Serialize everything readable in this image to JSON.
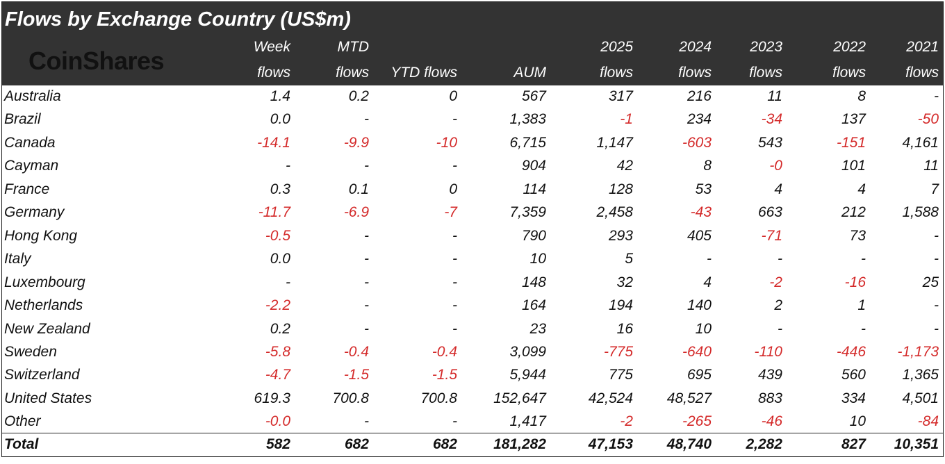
{
  "header": {
    "title": "Flows by Exchange Country (US$m)",
    "logo": "CoinShares",
    "columns": [
      [
        "Week",
        "flows"
      ],
      [
        "MTD",
        "flows"
      ],
      [
        "YTD flows"
      ],
      [
        "AUM"
      ],
      [
        "2025",
        "flows"
      ],
      [
        "2024",
        "flows"
      ],
      [
        "2023",
        "flows"
      ],
      [
        "2022",
        "flows"
      ],
      [
        "2021",
        "flows"
      ]
    ]
  },
  "table": {
    "rows": [
      [
        "Australia",
        "1.4",
        "0.2",
        "0",
        "567",
        "317",
        "216",
        "11",
        "8",
        "-"
      ],
      [
        "Brazil",
        "0.0",
        "-",
        "-",
        "1,383",
        "-1",
        "234",
        "-34",
        "137",
        "-50"
      ],
      [
        "Canada",
        "-14.1",
        "-9.9",
        "-10",
        "6,715",
        "1,147",
        "-603",
        "543",
        "-151",
        "4,161"
      ],
      [
        "Cayman",
        "-",
        "-",
        "-",
        "904",
        "42",
        "8",
        "-0",
        "101",
        "11"
      ],
      [
        "France",
        "0.3",
        "0.1",
        "0",
        "114",
        "128",
        "53",
        "4",
        "4",
        "7"
      ],
      [
        "Germany",
        "-11.7",
        "-6.9",
        "-7",
        "7,359",
        "2,458",
        "-43",
        "663",
        "212",
        "1,588"
      ],
      [
        "Hong Kong",
        "-0.5",
        "-",
        "-",
        "790",
        "293",
        "405",
        "-71",
        "73",
        "-"
      ],
      [
        "Italy",
        "0.0",
        "-",
        "-",
        "10",
        "5",
        "-",
        "-",
        "-",
        "-"
      ],
      [
        "Luxembourg",
        "-",
        "-",
        "-",
        "148",
        "32",
        "4",
        "-2",
        "-16",
        "25"
      ],
      [
        "Netherlands",
        "-2.2",
        "-",
        "-",
        "164",
        "194",
        "140",
        "2",
        "1",
        "-"
      ],
      [
        "New Zealand",
        "0.2",
        "-",
        "-",
        "23",
        "16",
        "10",
        "-",
        "-",
        "-"
      ],
      [
        "Sweden",
        "-5.8",
        "-0.4",
        "-0.4",
        "3,099",
        "-775",
        "-640",
        "-110",
        "-446",
        "-1,173"
      ],
      [
        "Switzerland",
        "-4.7",
        "-1.5",
        "-1.5",
        "5,944",
        "775",
        "695",
        "439",
        "560",
        "1,365"
      ],
      [
        "United States",
        "619.3",
        "700.8",
        "700.8",
        "152,647",
        "42,524",
        "48,527",
        "883",
        "334",
        "4,501"
      ],
      [
        "Other",
        "-0.0",
        "-",
        "-",
        "1,417",
        "-2",
        "-265",
        "-46",
        "10",
        "-84"
      ]
    ],
    "total": [
      "Total",
      "582",
      "682",
      "682",
      "181,282",
      "47,153",
      "48,740",
      "2,282",
      "827",
      "10,351"
    ]
  }
}
